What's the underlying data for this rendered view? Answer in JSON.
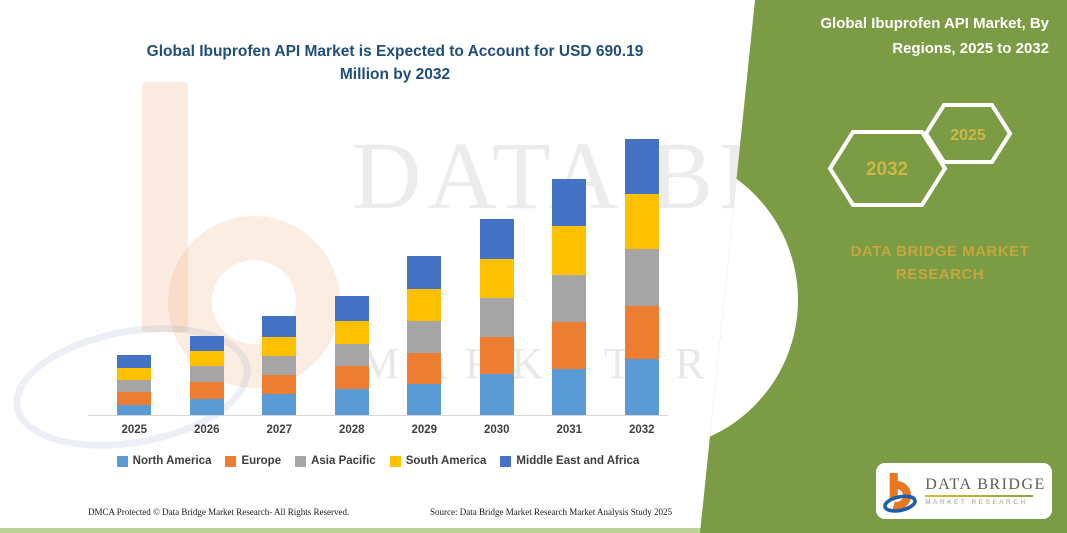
{
  "header": {
    "main_title": "Global Ibuprofen API Market is Expected to Account for USD 690.19 Million by 2032"
  },
  "chart_data": {
    "type": "bar",
    "stacked": true,
    "title": "Global Ibuprofen API Market is Expected to Account for USD 690.19 Million by 2032",
    "unit": "USD Million",
    "categories": [
      "2025",
      "2026",
      "2027",
      "2028",
      "2029",
      "2030",
      "2031",
      "2032"
    ],
    "series": [
      {
        "name": "North America",
        "color": "#5B9BD5",
        "values": [
          26.3,
          40.0,
          52.6,
          65.1,
          78.4,
          101.9,
          115.2,
          139.4
        ]
      },
      {
        "name": "Europe",
        "color": "#ED7D31",
        "values": [
          30.9,
          41.8,
          48.3,
          56.8,
          77.6,
          91.9,
          118.4,
          133.4
        ]
      },
      {
        "name": "Asia Pacific",
        "color": "#A5A5A5",
        "values": [
          30.0,
          40.0,
          47.6,
          55.8,
          79.3,
          98.4,
          116.9,
          142.0
        ]
      },
      {
        "name": "South America",
        "color": "#FFC000",
        "values": [
          30.9,
          39.3,
          45.8,
          58.3,
          80.9,
          97.6,
          120.9,
          138.5
        ]
      },
      {
        "name": "Middle East and Africa",
        "color": "#4472C4",
        "values": [
          30.9,
          35.8,
          54.3,
          60.8,
          81.9,
          100.1,
          118.4,
          136.9
        ]
      }
    ],
    "totals": [
      149.0,
      196.9,
      248.6,
      296.8,
      398.1,
      489.9,
      589.8,
      690.19
    ],
    "ylim": [
      0,
      712
    ],
    "grid": false,
    "legend_position": "bottom"
  },
  "side_panel": {
    "title": "Global Ibuprofen API Market, By Regions, 2025 to 2032",
    "hexagon_labels": [
      "2032",
      "2025"
    ],
    "brand_text": "DATA BRIDGE MARKET RESEARCH",
    "panel_color": "#7b9c44",
    "hexagon_label_color": "#CDB843"
  },
  "watermark": {
    "line1": "DATA BRIDGE",
    "line2": "MARKET RESEARCH"
  },
  "logo_box": {
    "brand": "DATA BRIDGE",
    "tagline": "MARKET RESEARCH"
  },
  "footer": {
    "left": "DMCA Protected © Data Bridge Market Research-  All Rights Reserved.",
    "source": "Source: Data Bridge Market Research  Market Analysis Study 2025"
  },
  "colors": {
    "title_blue": "#1F4E79",
    "axis_gray": "#d6d6d6",
    "bottom_strip_green": "#bdd095"
  }
}
